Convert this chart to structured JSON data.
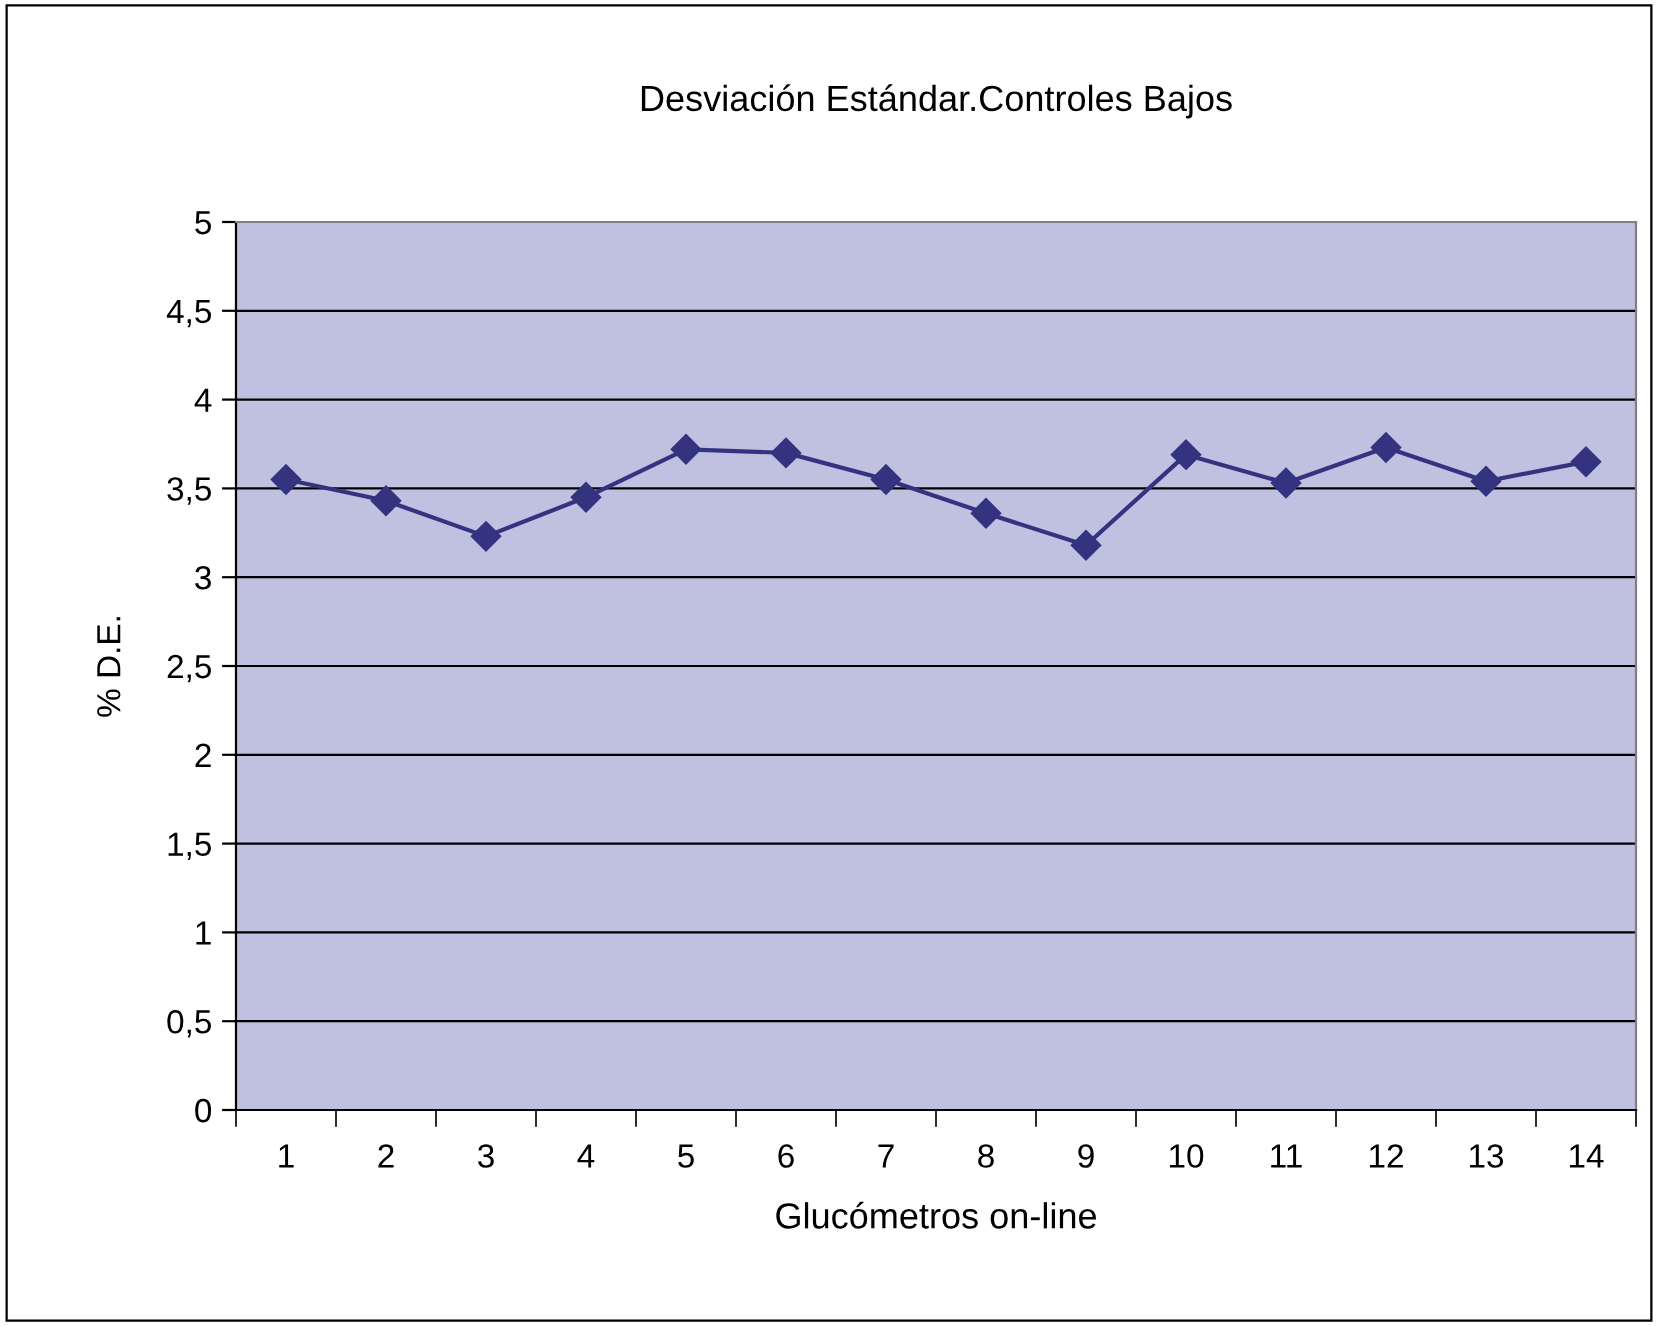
{
  "chart_data": {
    "type": "line",
    "title": "Desviación Estándar.Controles Bajos",
    "xlabel": "Glucómetros on-line",
    "ylabel": "% D.E.",
    "categories": [
      "1",
      "2",
      "3",
      "4",
      "5",
      "6",
      "7",
      "8",
      "9",
      "10",
      "11",
      "12",
      "13",
      "14"
    ],
    "series": [
      {
        "color": "#333380",
        "values": [
          3.55,
          3.43,
          3.23,
          3.45,
          3.72,
          3.7,
          3.55,
          3.36,
          3.18,
          3.69,
          3.53,
          3.73,
          3.54,
          3.65
        ]
      }
    ],
    "ylim": [
      0,
      5
    ],
    "yticks": [
      0,
      {
        "value": 0.5,
        "label": "0,5"
      },
      1,
      {
        "value": 1.5,
        "label": "1,5"
      },
      2,
      {
        "value": 2.5,
        "label": "2,5"
      },
      3,
      {
        "value": 3.5,
        "label": "3,5"
      },
      4,
      {
        "value": 4.5,
        "label": "4,5"
      },
      5
    ],
    "grid": "y",
    "marker": "diamond",
    "line_style": "solid",
    "legend": false
  }
}
